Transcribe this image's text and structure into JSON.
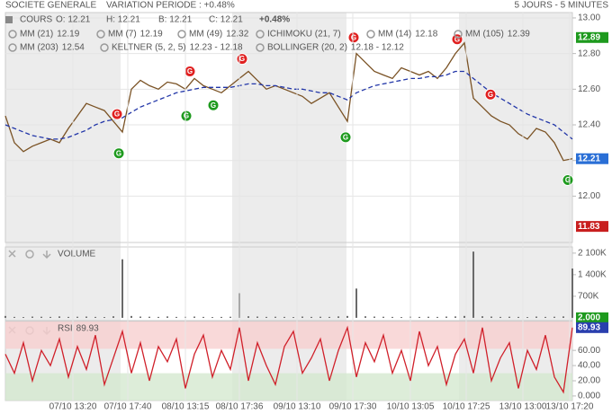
{
  "header": {
    "title": "SOCIETE GENERALE",
    "variation": "VARIATION PERIODE : +0.48%",
    "period": "5 JOURS - 5 MINUTES"
  },
  "chart_data": [
    {
      "type": "line",
      "quote": {
        "name": "COURS",
        "fields": [
          "O: 12.21",
          "H: 12.21",
          "B: 12.21",
          "C: 12.21"
        ],
        "change": "+0.48%",
        "change_color": "#1e9a1e"
      },
      "indicators": [
        {
          "name": "MM (21)",
          "value": "12.19",
          "color": "#3a9a3a"
        },
        {
          "name": "MM (7)",
          "value": "12.19",
          "color": "#e08a1e"
        },
        {
          "name": "MM (49)",
          "value": "12.32",
          "color": "#2236a8"
        },
        {
          "name": "ICHIMOKU (21, 7)",
          "color": "#333333"
        },
        {
          "name": "MM (14)",
          "value": "12.18",
          "color": "#e02020"
        },
        {
          "name": "MM (105)",
          "value": "12.39",
          "color": "#a020c0"
        },
        {
          "name": "MM (203)",
          "value": "12.54",
          "color": "#9aa0e8"
        },
        {
          "name": "KELTNER (5, 2, 5)",
          "value": "12.23 - 12.18",
          "color": "#2e7d2e"
        },
        {
          "name": "BOLLINGER (20, 2)",
          "value": "12.18 - 12.12",
          "color": "#e08a1e"
        }
      ],
      "xlim": [
        0,
        63
      ],
      "ylim": [
        11.74,
        13.03
      ],
      "yticks": [
        {
          "value": 12,
          "label": "12.00"
        },
        {
          "value": 12.2,
          "label": "12.20"
        },
        {
          "value": 12.4,
          "label": "12.40"
        },
        {
          "value": 12.6,
          "label": "12.60"
        },
        {
          "value": 12.8,
          "label": "12.80"
        },
        {
          "value": 13,
          "label": "13.00"
        }
      ],
      "grid": true,
      "series": [
        {
          "color": "#7a5224",
          "values": [
            12.45,
            12.3,
            12.25,
            12.28,
            12.3,
            12.32,
            12.3,
            12.38,
            12.45,
            12.52,
            12.5,
            12.48,
            12.42,
            12.36,
            12.6,
            12.65,
            12.62,
            12.6,
            12.64,
            12.63,
            12.6,
            12.66,
            12.62,
            12.6,
            12.58,
            12.62,
            12.66,
            12.7,
            12.65,
            12.6,
            12.62,
            12.6,
            12.58,
            12.56,
            12.52,
            12.55,
            12.58,
            12.5,
            12.42,
            12.8,
            12.75,
            12.7,
            12.68,
            12.66,
            12.72,
            12.7,
            12.68,
            12.7,
            12.66,
            12.72,
            12.8,
            12.86,
            12.55,
            12.5,
            12.45,
            12.42,
            12.4,
            12.35,
            12.32,
            12.38,
            12.36,
            12.3,
            12.2,
            12.21
          ]
        },
        {
          "color": "#2236a8",
          "dashed": true,
          "values": [
            12.4,
            12.38,
            12.36,
            12.34,
            12.33,
            12.32,
            12.32,
            12.33,
            12.35,
            12.37,
            12.4,
            12.42,
            12.43,
            12.44,
            12.47,
            12.5,
            12.52,
            12.54,
            12.56,
            12.58,
            12.59,
            12.6,
            12.61,
            12.61,
            12.61,
            12.61,
            12.62,
            12.63,
            12.63,
            12.62,
            12.62,
            12.61,
            12.6,
            12.6,
            12.59,
            12.58,
            12.58,
            12.56,
            12.54,
            12.58,
            12.6,
            12.62,
            12.63,
            12.64,
            12.65,
            12.66,
            12.66,
            12.67,
            12.67,
            12.68,
            12.7,
            12.7,
            12.66,
            12.62,
            12.58,
            12.55,
            12.52,
            12.49,
            12.46,
            12.44,
            12.42,
            12.4,
            12.36,
            12.32
          ]
        }
      ],
      "marker_label": "G",
      "markers": [
        {
          "color": "#1e9a1e",
          "x": [
            12.6,
            20.1,
            23.1,
            37.8,
            62.5
          ],
          "y": [
            12.24,
            12.45,
            12.51,
            12.33,
            12.09
          ]
        },
        {
          "color": "#e02020",
          "x": [
            12.4,
            20.5,
            26.3,
            38.7,
            50.2,
            53.9
          ],
          "y": [
            12.46,
            12.7,
            12.77,
            12.89,
            12.88,
            12.57
          ]
        }
      ],
      "badges": [
        {
          "value": 12.89,
          "color": "#1e9a1e"
        },
        {
          "value": 12.21,
          "color": "#2a6fd6"
        },
        {
          "value": 11.83,
          "color": "#c81e1e"
        }
      ]
    },
    {
      "type": "bar",
      "title": "VOLUME",
      "color": "#6a6a6a",
      "xlim": [
        0,
        63
      ],
      "ylim": [
        -90000,
        2300000
      ],
      "yticks": [
        {
          "value": 700000,
          "label": "700K"
        },
        {
          "value": 1400000,
          "label": "1 400K"
        },
        {
          "value": 2100000,
          "label": "2 100K"
        }
      ],
      "values": [
        60000,
        30000,
        25000,
        40000,
        35000,
        30000,
        45000,
        30000,
        35000,
        40000,
        30000,
        25000,
        50000,
        1900000,
        60000,
        40000,
        35000,
        30000,
        45000,
        30000,
        35000,
        40000,
        30000,
        25000,
        30000,
        35000,
        800000,
        50000,
        40000,
        30000,
        35000,
        30000,
        25000,
        40000,
        30000,
        35000,
        30000,
        45000,
        60000,
        950000,
        50000,
        40000,
        35000,
        30000,
        25000,
        40000,
        30000,
        35000,
        30000,
        40000,
        45000,
        60000,
        2150000,
        50000,
        40000,
        30000,
        35000,
        30000,
        25000,
        40000,
        30000,
        35000,
        45000,
        1600000
      ],
      "badges": [
        {
          "value": 2000,
          "label": "2.000",
          "color": "#1e9a1e"
        }
      ]
    },
    {
      "type": "line",
      "title": "RSI",
      "xlim": [
        0,
        63
      ],
      "ylim": [
        -6,
        98
      ],
      "yticks": [
        {
          "value": 0,
          "label": "0.000"
        },
        {
          "value": 20,
          "label": "20.00"
        },
        {
          "value": 40,
          "label": "40.00"
        },
        {
          "value": 60,
          "label": "60.00"
        }
      ],
      "xticks": [
        {
          "value": 7.5,
          "label": "07/10 13:20"
        },
        {
          "value": 13.6,
          "label": "07/10 17:40"
        },
        {
          "value": 20,
          "label": "08/10 13:15"
        },
        {
          "value": 26,
          "label": "08/10 17:36"
        },
        {
          "value": 32.4,
          "label": "09/10 13:10"
        },
        {
          "value": 38.6,
          "label": "09/10 17:30"
        },
        {
          "value": 45,
          "label": "10/10 13:05"
        },
        {
          "value": 51.2,
          "label": "10/10 17:25"
        },
        {
          "value": 57.5,
          "label": "13/10 13:00"
        },
        {
          "value": 62.7,
          "label": "13/10 17:20"
        }
      ],
      "zones": [
        {
          "range": [
            62,
            98
          ],
          "color": "#f7cfd0"
        },
        {
          "range": [
            -6,
            30
          ],
          "color": "#d4e8d0"
        }
      ],
      "series": [
        {
          "color": "#d0202a",
          "values": [
            55,
            30,
            70,
            20,
            60,
            40,
            75,
            25,
            65,
            35,
            80,
            15,
            50,
            85,
            30,
            70,
            20,
            65,
            45,
            75,
            10,
            55,
            80,
            25,
            60,
            35,
            90,
            20,
            70,
            40,
            15,
            65,
            85,
            30,
            50,
            75,
            20,
            60,
            90,
            25,
            70,
            45,
            80,
            30,
            60,
            20,
            85,
            40,
            65,
            15,
            55,
            75,
            30,
            90,
            20,
            50,
            70,
            10,
            60,
            35,
            80,
            25,
            5,
            89.93
          ]
        }
      ],
      "badges": [
        {
          "value": 89.93,
          "color": "#2a3fae"
        }
      ]
    }
  ]
}
